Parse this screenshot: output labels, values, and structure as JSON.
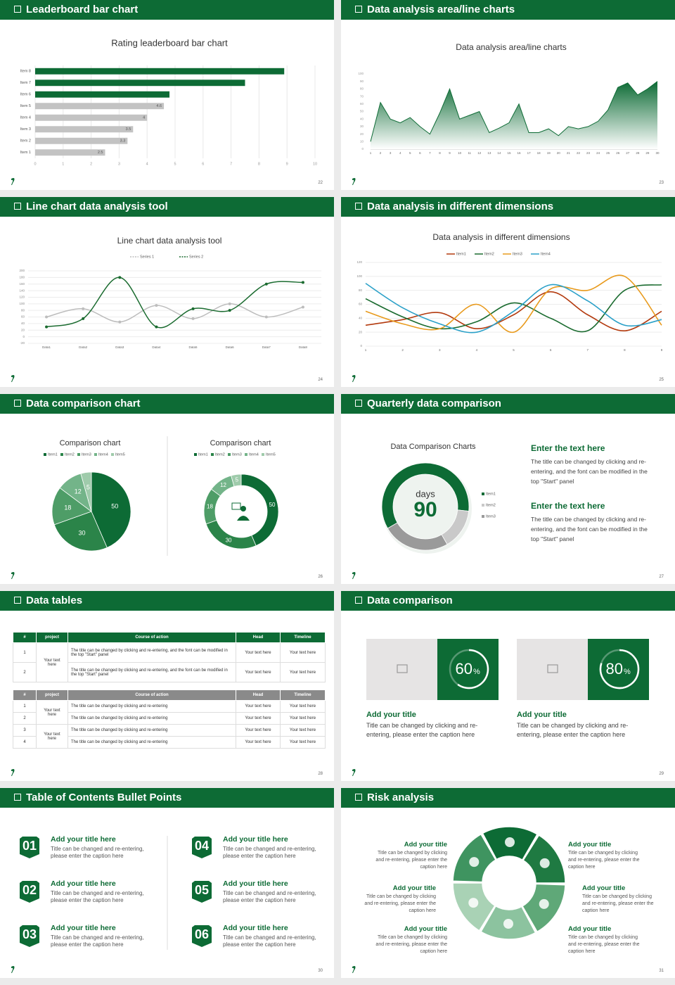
{
  "slides": [
    {
      "title": "Leaderboard bar chart",
      "page": 22
    },
    {
      "title": "Data analysis area/line charts",
      "page": 23
    },
    {
      "title": "Line chart data analysis tool",
      "page": 24
    },
    {
      "title": "Data analysis in different dimensions",
      "page": 25
    },
    {
      "title": "Data comparison chart",
      "page": 26
    },
    {
      "title": "Quarterly data comparison",
      "page": 27
    },
    {
      "title": "Data tables",
      "page": 28
    },
    {
      "title": "Data comparison",
      "page": 29
    },
    {
      "title": "Table of Contents Bullet Points",
      "page": 30
    },
    {
      "title": "Risk analysis",
      "page": 31
    }
  ],
  "chart_data": [
    {
      "type": "hbar",
      "title": "Rating leaderboard bar chart",
      "categories": [
        "Item 8",
        "Item 7",
        "Item 6",
        "Item 5",
        "Item 4",
        "Item 3",
        "Item 2",
        "Item 1"
      ],
      "values": [
        8.9,
        7.5,
        4.8,
        4.6,
        4,
        3.5,
        3.3,
        2.5
      ],
      "colors": [
        "#0d6b35",
        "#0d6b35",
        "#0d6b35",
        "#c3c3c3",
        "#c3c3c3",
        "#c3c3c3",
        "#c3c3c3",
        "#c3c3c3"
      ],
      "data_labels": [
        false,
        false,
        false,
        true,
        true,
        true,
        true,
        true
      ],
      "xlim": [
        0,
        10
      ],
      "xticks": [
        0,
        1,
        2,
        3,
        4,
        5,
        6,
        7,
        8,
        9,
        10
      ],
      "grid": true
    },
    {
      "type": "area",
      "title": "Data analysis area/line charts",
      "categories": [
        1,
        2,
        3,
        4,
        5,
        6,
        7,
        8,
        9,
        10,
        11,
        12,
        13,
        14,
        15,
        16,
        17,
        18,
        19,
        20,
        21,
        22,
        23,
        24,
        25,
        26,
        27,
        28,
        29,
        30
      ],
      "values": [
        10,
        62,
        40,
        35,
        42,
        30,
        20,
        48,
        80,
        40,
        45,
        50,
        22,
        28,
        35,
        60,
        22,
        22,
        27,
        18,
        30,
        27,
        30,
        37,
        52,
        82,
        88,
        72,
        80,
        90
      ],
      "color": "#0d6b35",
      "ylim": [
        0,
        100
      ],
      "yticks": [
        0,
        10,
        20,
        30,
        40,
        50,
        60,
        70,
        80,
        90,
        100
      ]
    },
    {
      "type": "line",
      "title": "Line chart data analysis tool",
      "categories": [
        "Data1",
        "Data2",
        "Data3",
        "Data4",
        "Data5",
        "Data6",
        "Data7",
        "Data8"
      ],
      "series": [
        {
          "name": "Series 1",
          "color": "#bdbdbd",
          "values": [
            60,
            85,
            45,
            95,
            55,
            100,
            60,
            90
          ]
        },
        {
          "name": "Series 2",
          "color": "#1a6b2f",
          "values": [
            30,
            55,
            180,
            30,
            85,
            80,
            160,
            165
          ]
        }
      ],
      "ylim": [
        -20,
        200
      ],
      "yticks": [
        -20,
        0,
        20,
        40,
        60,
        80,
        100,
        120,
        140,
        160,
        180,
        200
      ],
      "grid": true
    },
    {
      "type": "line",
      "title": "Data analysis in different dimensions",
      "categories": [
        1,
        2,
        3,
        4,
        5,
        6,
        7,
        8,
        9
      ],
      "series": [
        {
          "name": "Item1",
          "color": "#b33a0e",
          "values": [
            30,
            38,
            48,
            25,
            45,
            78,
            45,
            22,
            50
          ]
        },
        {
          "name": "Item2",
          "color": "#1a6b2f",
          "values": [
            68,
            42,
            25,
            35,
            62,
            40,
            22,
            80,
            88
          ]
        },
        {
          "name": "Item3",
          "color": "#e89a1c",
          "values": [
            50,
            32,
            25,
            60,
            20,
            82,
            80,
            100,
            30
          ]
        },
        {
          "name": "Item4",
          "color": "#2aa0c8",
          "values": [
            90,
            55,
            32,
            20,
            50,
            88,
            65,
            30,
            38
          ]
        }
      ],
      "ylim": [
        0,
        120
      ],
      "yticks": [
        0,
        20,
        40,
        60,
        80,
        100,
        120
      ],
      "grid": true
    },
    {
      "type": "pie",
      "title": "Comparison chart",
      "categories": [
        "Item1",
        "Item2",
        "Item3",
        "Item4",
        "Item5"
      ],
      "values": [
        50,
        30,
        18,
        12,
        5
      ],
      "colors": [
        "#0d6b35",
        "#2b8449",
        "#4e9d67",
        "#73b489",
        "#9fcbab"
      ]
    },
    {
      "type": "donut",
      "title": "Comparison chart",
      "categories": [
        "Item1",
        "Item2",
        "Item3",
        "Item4",
        "Item5"
      ],
      "values": [
        50,
        30,
        18,
        12,
        5
      ],
      "colors": [
        "#0d6b35",
        "#2b8449",
        "#4e9d67",
        "#73b489",
        "#9fcbab"
      ]
    },
    {
      "type": "donut",
      "title": "Data Comparison Charts",
      "categories": [
        "Item1",
        "Item2",
        "Item3"
      ],
      "values": [
        60,
        15,
        25
      ],
      "colors": [
        "#0d6b35",
        "#c9c9c9",
        "#9a9a9a"
      ],
      "center_label": "days",
      "center_value": 90
    }
  ],
  "quarterly": {
    "blocks": [
      {
        "heading": "Enter the text here",
        "body": "The title can be changed by clicking and re-entering, and the font can be modified in the top \"Start\" panel"
      },
      {
        "heading": "Enter the text here",
        "body": "The title can be changed by clicking and re-entering, and the font can be modified in the top \"Start\" panel"
      }
    ]
  },
  "tables": {
    "tables": [
      {
        "header": [
          "#",
          "project",
          "Course of action",
          "Head",
          "Timeline"
        ],
        "rows": [
          [
            1,
            "Your text here",
            "The title can be changed by clicking and re-entering, and the font can be modified in the top \"Start\" panel",
            "Your text here",
            "Your text here"
          ],
          [
            2,
            null,
            "The title can be changed by clicking and re-entering, and the font can be modified in the top \"Start\" panel",
            "Your text here",
            "Your text here"
          ]
        ]
      },
      {
        "header": [
          "#",
          "project",
          "Course of action",
          "Head",
          "Timeline"
        ],
        "rows": [
          [
            1,
            "Your text here",
            "The title can be changed by clicking and re-entering",
            "Your text here",
            "Your text here"
          ],
          [
            2,
            null,
            "The title can be changed by clicking and re-entering",
            "Your text here",
            "Your text here"
          ],
          [
            3,
            "Your text here",
            "The title can be changed by clicking and re-entering",
            "Your text here",
            "Your text here"
          ],
          [
            4,
            null,
            "The title can be changed by clicking and re-entering",
            "Your text here",
            "Your text here"
          ]
        ]
      }
    ]
  },
  "comparison": {
    "cards": [
      {
        "value": 60,
        "unit": "%",
        "title": "Add your title",
        "caption": "Title can be changed by clicking and re-entering, please enter the caption here"
      },
      {
        "value": 80,
        "unit": "%",
        "title": "Add your title",
        "caption": "Title can be changed by clicking and re-entering, please enter the caption here"
      }
    ]
  },
  "toc": {
    "items": [
      {
        "number": "01",
        "title": "Add your title here",
        "caption": "Title can be changed and re-entering, please enter the caption here"
      },
      {
        "number": "02",
        "title": "Add your title here",
        "caption": "Title can be changed and re-entering, please enter the caption here"
      },
      {
        "number": "03",
        "title": "Add your title here",
        "caption": "Title can be changed and re-entering, please enter the caption here"
      },
      {
        "number": "04",
        "title": "Add your title here",
        "caption": "Title can be changed and re-entering, please enter the caption here"
      },
      {
        "number": "05",
        "title": "Add your title here",
        "caption": "Title can be changed and re-entering, please enter the caption here"
      },
      {
        "number": "06",
        "title": "Add your title here",
        "caption": "Title can be changed and re-entering, please enter the caption here"
      }
    ]
  },
  "risk": {
    "items": [
      {
        "title": "Add your title",
        "caption": "Title can be changed by clicking and re-entering, please enter the caption here"
      },
      {
        "title": "Add your title",
        "caption": "Title can be changed by clicking and re-entering, please enter the caption here"
      },
      {
        "title": "Add your title",
        "caption": "Title can be changed by clicking and re-entering, please enter the caption here"
      },
      {
        "title": "Add your title",
        "caption": "Title can be changed by clicking and re-entering, please enter the caption here"
      },
      {
        "title": "Add your title",
        "caption": "Title can be changed by clicking and re-entering, please enter the caption here"
      },
      {
        "title": "Add your title",
        "caption": "Title can be changed by clicking and re-entering, please enter the caption here"
      }
    ]
  }
}
